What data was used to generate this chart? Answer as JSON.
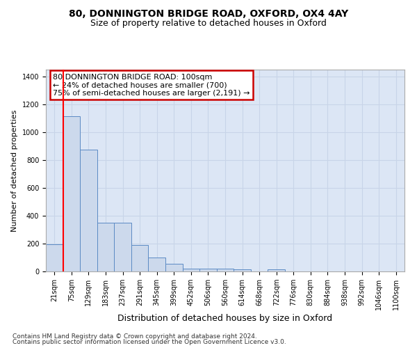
{
  "title1": "80, DONNINGTON BRIDGE ROAD, OXFORD, OX4 4AY",
  "title2": "Size of property relative to detached houses in Oxford",
  "xlabel": "Distribution of detached houses by size in Oxford",
  "ylabel": "Number of detached properties",
  "bin_labels": [
    "21sqm",
    "75sqm",
    "129sqm",
    "183sqm",
    "237sqm",
    "291sqm",
    "345sqm",
    "399sqm",
    "452sqm",
    "506sqm",
    "560sqm",
    "614sqm",
    "668sqm",
    "722sqm",
    "776sqm",
    "830sqm",
    "884sqm",
    "938sqm",
    "992sqm",
    "1046sqm",
    "1100sqm"
  ],
  "bar_values": [
    195,
    1115,
    875,
    350,
    350,
    190,
    100,
    55,
    22,
    22,
    18,
    15,
    0,
    15,
    0,
    0,
    0,
    0,
    0,
    0,
    0
  ],
  "bar_color": "#ccd9ec",
  "bar_edge_color": "#5b8ac4",
  "grid_color": "#c8d4e8",
  "bg_color": "#dce6f5",
  "red_line_x": 0.5,
  "annotation_line1": "80 DONNINGTON BRIDGE ROAD: 100sqm",
  "annotation_line2": "← 24% of detached houses are smaller (700)",
  "annotation_line3": "75% of semi-detached houses are larger (2,191) →",
  "annotation_box_color": "#ffffff",
  "annotation_border_color": "#cc0000",
  "footer1": "Contains HM Land Registry data © Crown copyright and database right 2024.",
  "footer2": "Contains public sector information licensed under the Open Government Licence v3.0.",
  "ylim": [
    0,
    1450
  ],
  "yticks": [
    0,
    200,
    400,
    600,
    800,
    1000,
    1200,
    1400
  ],
  "title1_fontsize": 10,
  "title2_fontsize": 9,
  "ylabel_fontsize": 8,
  "xlabel_fontsize": 9,
  "tick_fontsize": 7,
  "annotation_fontsize": 8,
  "footer_fontsize": 6.5
}
